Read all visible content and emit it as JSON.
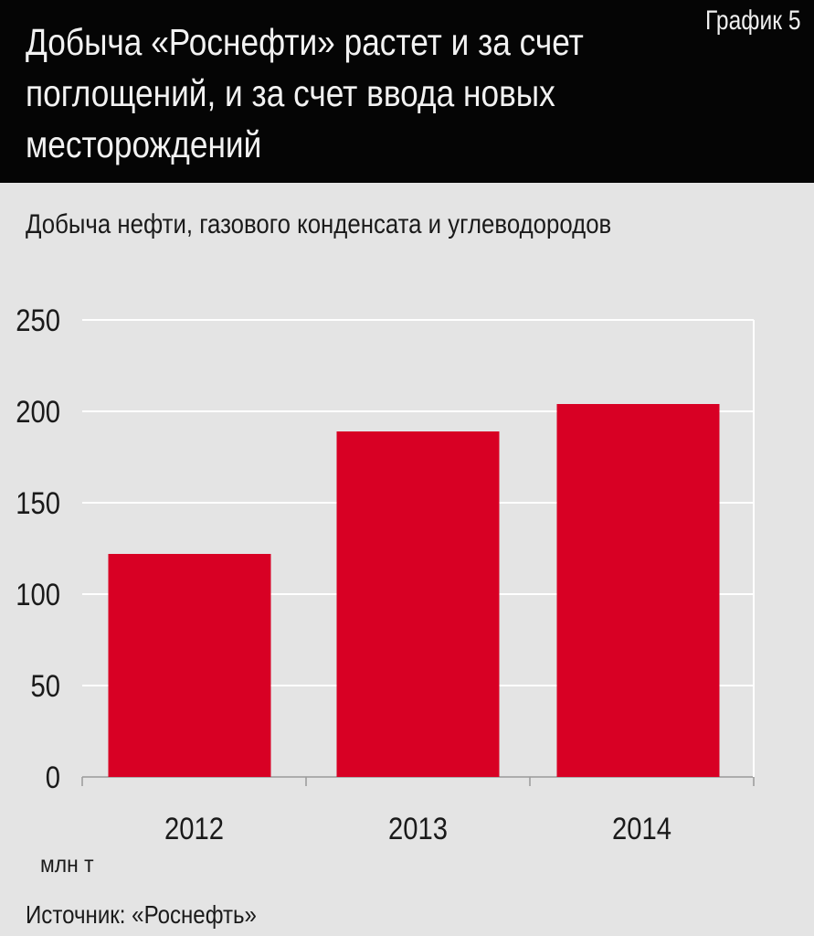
{
  "header": {
    "chart_number": "График 5",
    "title": "Добыча «Роснефти» растет и за счет поглощений, и за счет ввода новых месторождений"
  },
  "subtitle": "Добыча нефти, газового конденсата и углеводородов",
  "unit_label": "млн т",
  "source": "Источник: «Роснефть»",
  "colors": {
    "header_bg": "#050505",
    "page_bg": "#e4e4e4",
    "bar": "#d80024",
    "grid": "#ffffff"
  },
  "chart_data": {
    "type": "bar",
    "categories": [
      "2012",
      "2013",
      "2014"
    ],
    "values": [
      122,
      189,
      204
    ],
    "ylim": [
      0,
      250
    ],
    "yticks": [
      0,
      50,
      100,
      150,
      200,
      250
    ],
    "grid": true,
    "xlabel": "",
    "ylabel": "млн т"
  }
}
